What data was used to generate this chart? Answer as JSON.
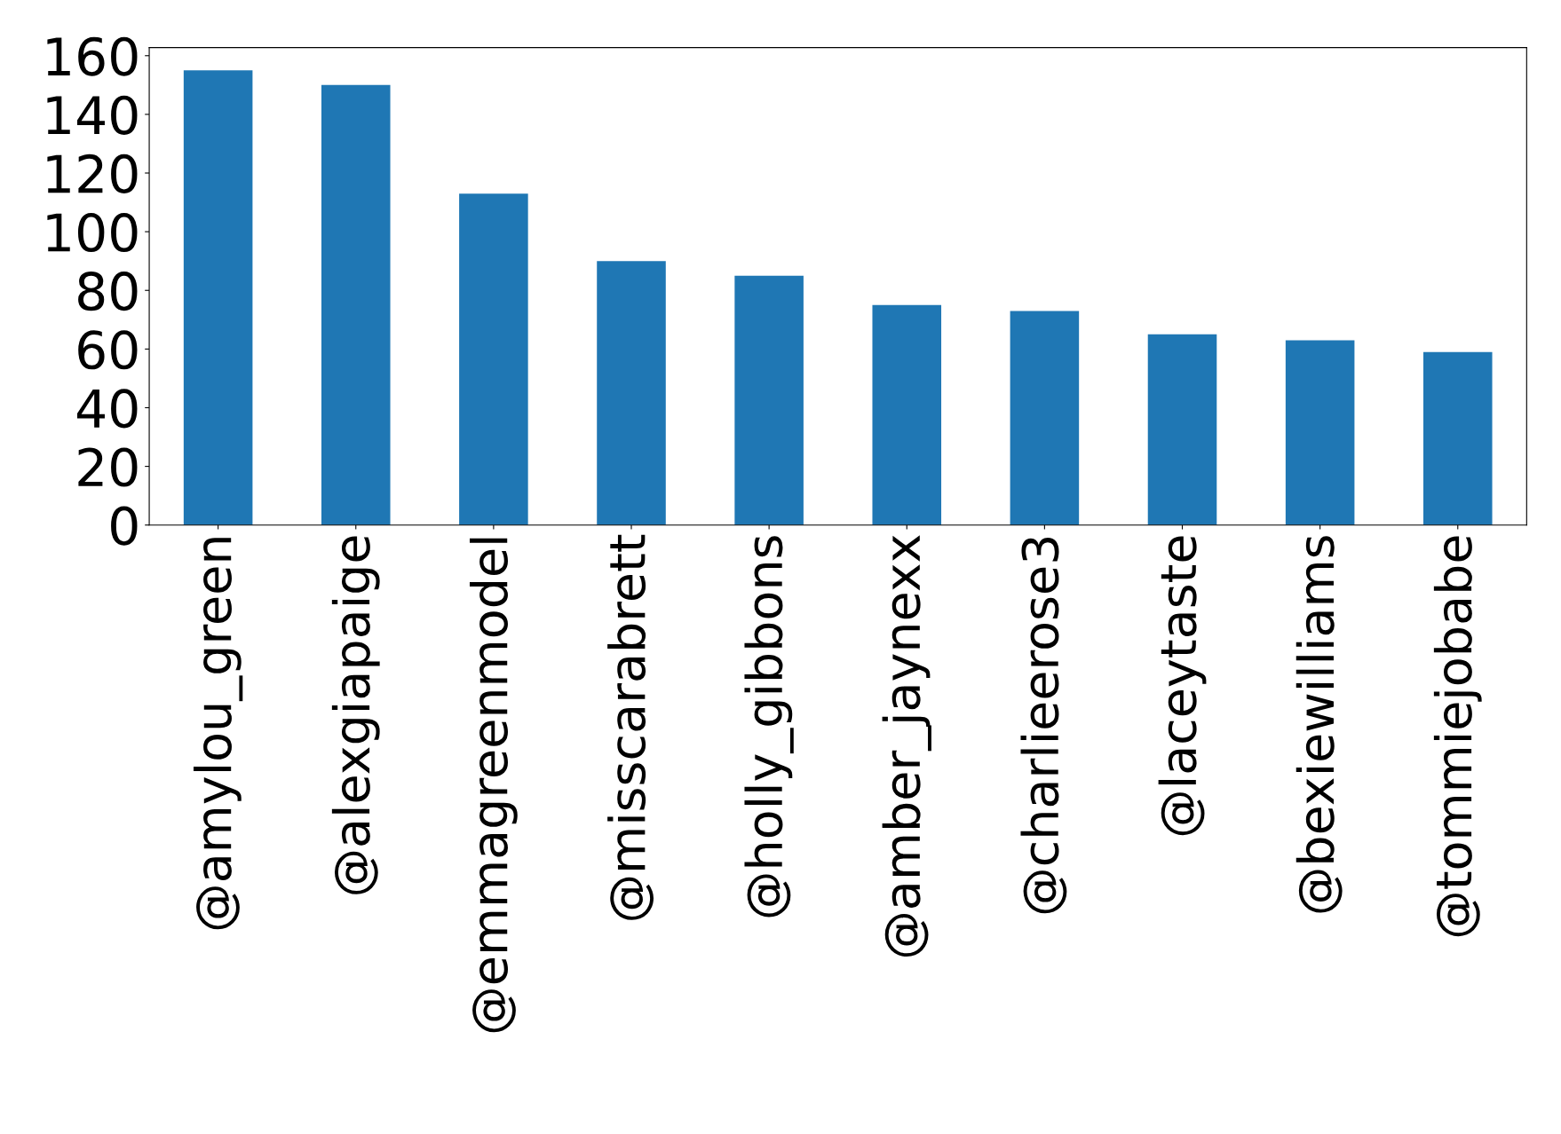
{
  "chart_data": {
    "type": "bar",
    "categories": [
      "@amylou_green",
      "@alexgiapaige",
      "@emmagreenmodel",
      "@misscarabrett",
      "@holly_gibbons",
      "@amber_jaynexx",
      "@charlieerose3",
      "@laceytaste",
      "@bexiewilliams",
      "@tommiejobabe"
    ],
    "values": [
      155,
      150,
      113,
      90,
      85,
      75,
      73,
      65,
      63,
      59
    ],
    "color": "#1f77b4",
    "ylim": [
      0,
      162.75
    ],
    "yticks": [
      0,
      20,
      40,
      60,
      80,
      100,
      120,
      140,
      160
    ],
    "grid": false
  }
}
